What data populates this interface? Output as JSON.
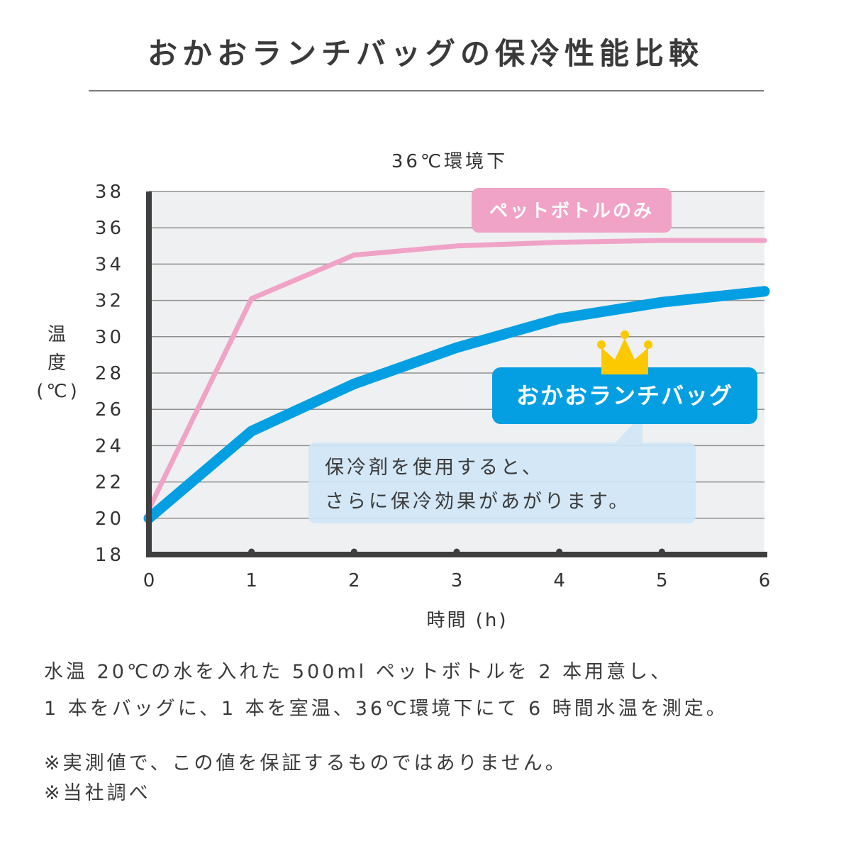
{
  "page": {
    "title": "おかおランチバッグの保冷性能比較",
    "notes": [
      "水温 20℃の水を入れた 500ml ペットボトルを 2 本用意し、",
      "1 本をバッグに、1 本を室温、36℃環境下にて 6 時間水温を測定。"
    ],
    "disclaimers": [
      "※実測値で、この値を保証するものではありません。",
      "※当社調べ"
    ]
  },
  "chart_data": {
    "type": "line",
    "title": "36℃環境下",
    "xlabel": "時間 (h)",
    "ylabel": "温度 (℃)",
    "xlim": [
      0,
      6
    ],
    "ylim": [
      18,
      38
    ],
    "x_ticks": [
      0,
      1,
      2,
      3,
      4,
      5,
      6
    ],
    "y_ticks": [
      18,
      20,
      22,
      24,
      26,
      28,
      30,
      32,
      34,
      36,
      38
    ],
    "grid": true,
    "series": [
      {
        "name": "ペットボトルのみ",
        "color": "#f0a3c6",
        "x": [
          0,
          1,
          2,
          3,
          4,
          5,
          6
        ],
        "y": [
          20.5,
          32.1,
          34.5,
          35.0,
          35.2,
          35.3,
          35.3
        ]
      },
      {
        "name": "おかおランチバッグ",
        "color": "#049fe3",
        "x": [
          0,
          1,
          2,
          3,
          4,
          5,
          6
        ],
        "y": [
          20.0,
          24.8,
          27.4,
          29.4,
          31.0,
          31.9,
          32.5
        ]
      }
    ],
    "annotation": {
      "lines": [
        "保冷剤を使用すると、",
        "さらに保冷効果があがります。"
      ]
    },
    "crown_icon": "crown-icon",
    "colors": {
      "plot_bg": "#eff0f1",
      "axis": "#3f3f3f",
      "gridline": "#8f8f8f",
      "crown": "#fcc800",
      "callout_bg": "#cfe6f6"
    }
  }
}
